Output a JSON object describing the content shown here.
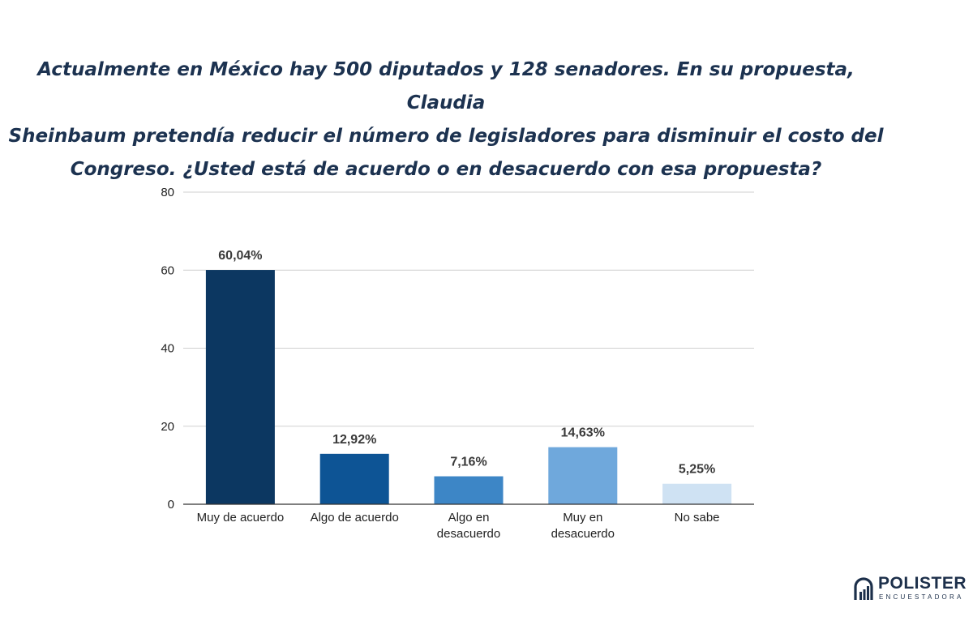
{
  "title": "Actualmente en México hay 500 diputados y 128 senadores. En su propuesta, Claudia\nSheinbaum pretendía reducir el número de legisladores para disminuir el costo del\nCongreso. ¿Usted está de acuerdo o en desacuerdo con esa propuesta?",
  "chart_data": {
    "type": "bar",
    "title": "",
    "xlabel": "",
    "ylabel": "",
    "ylim": [
      0,
      80
    ],
    "yticks": [
      0,
      20,
      40,
      60,
      80
    ],
    "grid": true,
    "legend": "none",
    "categories": [
      [
        "Muy de acuerdo"
      ],
      [
        "Algo de acuerdo"
      ],
      [
        "Algo en",
        "desacuerdo"
      ],
      [
        "Muy en",
        "desacuerdo"
      ],
      [
        "No sabe"
      ]
    ],
    "values": [
      60.04,
      12.92,
      7.16,
      14.63,
      5.25
    ],
    "data_labels": [
      "60,04%",
      "12,92%",
      "7,16%",
      "14,63%",
      "5,25%"
    ],
    "colors": [
      "#0c3761",
      "#0d5495",
      "#3d86c6",
      "#6fa8dc",
      "#cfe2f3"
    ]
  },
  "logo": {
    "name": "POLISTER",
    "subtitle": "ENCUESTADORA"
  }
}
